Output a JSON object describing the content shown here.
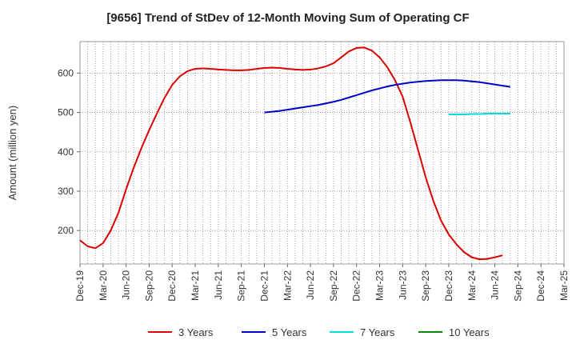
{
  "chart_data": {
    "type": "line",
    "title": "[9656]  Trend of StDev of 12-Month Moving Sum of Operating CF",
    "ylabel": "Amount (million yen)",
    "xlabel": "",
    "x_tick_labels": [
      "Dec-19",
      "Mar-20",
      "Jun-20",
      "Sep-20",
      "Dec-20",
      "Mar-21",
      "Jun-21",
      "Sep-21",
      "Dec-21",
      "Mar-22",
      "Jun-22",
      "Sep-22",
      "Dec-22",
      "Mar-23",
      "Jun-23",
      "Sep-23",
      "Dec-23",
      "Mar-24",
      "Jun-24",
      "Sep-24",
      "Dec-24",
      "Mar-25"
    ],
    "y_ticks": [
      200,
      300,
      400,
      500,
      600
    ],
    "ylim": [
      115,
      680
    ],
    "grid": true,
    "legend_position": "bottom",
    "series": [
      {
        "name": "3 Years",
        "color": "#dd0000",
        "start_index": 0,
        "values": [
          175,
          160,
          155,
          168,
          200,
          245,
          305,
          360,
          410,
          455,
          497,
          537,
          570,
          592,
          605,
          611,
          612,
          611,
          609,
          608,
          607,
          607,
          608,
          611,
          613,
          614,
          613,
          611,
          609,
          608,
          609,
          612,
          617,
          625,
          640,
          655,
          664,
          665,
          657,
          640,
          615,
          582,
          540,
          475,
          405,
          335,
          275,
          225,
          190,
          165,
          145,
          132,
          127,
          128,
          132,
          137
        ]
      },
      {
        "name": "5 Years",
        "color": "#0000cc",
        "start_index": 24,
        "values": [
          500,
          502,
          504,
          507,
          510,
          513,
          516,
          519,
          523,
          527,
          532,
          538,
          544,
          550,
          556,
          561,
          566,
          570,
          573,
          576,
          578,
          580,
          581,
          582,
          582,
          582,
          581,
          579,
          577,
          574,
          571,
          568,
          565
        ]
      },
      {
        "name": "7 Years",
        "color": "#00dddd",
        "start_index": 48,
        "values": [
          495,
          495,
          495,
          496,
          496,
          497,
          497,
          497,
          497
        ]
      },
      {
        "name": "10 Years",
        "color": "#008800",
        "start_index": 0,
        "values": []
      }
    ]
  }
}
